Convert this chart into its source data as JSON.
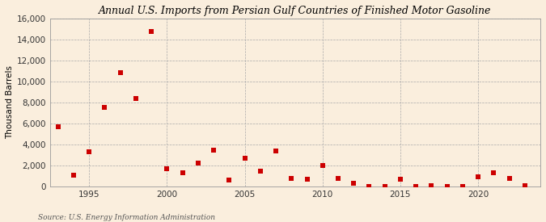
{
  "title": "Annual U.S. Imports from Persian Gulf Countries of Finished Motor Gasoline",
  "ylabel": "Thousand Barrels",
  "source": "Source: U.S. Energy Information Administration",
  "background_color": "#faeedd",
  "plot_background_color": "#faeedd",
  "marker_color": "#cc0000",
  "marker": "s",
  "marker_size": 5,
  "ylim": [
    0,
    16000
  ],
  "yticks": [
    0,
    2000,
    4000,
    6000,
    8000,
    10000,
    12000,
    14000,
    16000
  ],
  "xticks": [
    1995,
    2000,
    2005,
    2010,
    2015,
    2020
  ],
  "xlim": [
    1992.5,
    2024
  ],
  "years": [
    1993,
    1994,
    1995,
    1996,
    1997,
    1998,
    1999,
    2000,
    2001,
    2002,
    2003,
    2004,
    2005,
    2006,
    2007,
    2008,
    2009,
    2010,
    2011,
    2012,
    2013,
    2014,
    2015,
    2016,
    2017,
    2018,
    2019,
    2020,
    2021,
    2022,
    2023
  ],
  "values": [
    5700,
    1100,
    3300,
    7500,
    10800,
    8400,
    14700,
    1700,
    1300,
    2200,
    3500,
    600,
    2700,
    1500,
    3400,
    800,
    700,
    2000,
    800,
    300,
    0,
    0,
    700,
    0,
    100,
    0,
    0,
    900,
    1300,
    800,
    100
  ],
  "title_fontsize": 9,
  "tick_fontsize": 7.5,
  "ylabel_fontsize": 7.5
}
